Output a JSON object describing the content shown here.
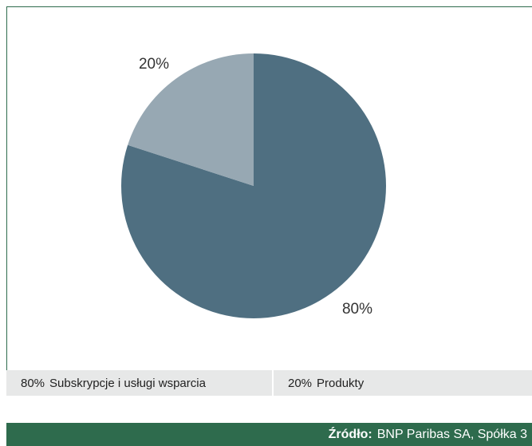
{
  "chart_data": {
    "type": "pie",
    "slices": [
      {
        "label": "Subskrypcje i usługi wsparcia",
        "value": 80,
        "display": "80%",
        "color": "#4f6f81"
      },
      {
        "label": "Produkty",
        "value": 20,
        "display": "20%",
        "color": "#97a8b3"
      }
    ],
    "legend_placement": "bottom"
  },
  "legend": {
    "items": [
      {
        "pct": "80%",
        "label": "Subskrypcje i usługi wsparcia"
      },
      {
        "pct": "20%",
        "label": "Produkty"
      }
    ]
  },
  "source": {
    "label": "Źródło:",
    "text": "BNP Paribas SA, Spółka 3"
  }
}
